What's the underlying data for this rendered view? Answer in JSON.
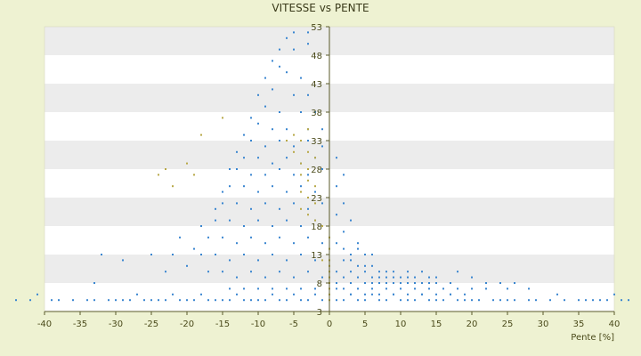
{
  "chart_data": {
    "type": "scatter",
    "title": "VITESSE vs PENTE",
    "xlabel": "Pente [%]",
    "ylabel": "",
    "xlim": [
      -40,
      40
    ],
    "ylim": [
      3,
      53
    ],
    "x_ticks": [
      -40,
      -35,
      -30,
      -25,
      -20,
      -15,
      -10,
      -5,
      0,
      5,
      10,
      15,
      20,
      25,
      30,
      35,
      40
    ],
    "y_ticks": [
      3,
      8,
      13,
      18,
      23,
      28,
      33,
      38,
      43,
      48,
      53
    ],
    "grid": "horizontal alternating bands",
    "legend": "none",
    "colors": {
      "points": "#3a86d0",
      "points_secondary": "#b8a848",
      "band_light": "#ffffff",
      "band_dark": "#ececec",
      "axis": "#5a5a2a"
    },
    "series": [
      {
        "color": "#3a86d0",
        "points": [
          [
            -44,
            5
          ],
          [
            -42,
            5
          ],
          [
            -41,
            6
          ],
          [
            -39,
            5
          ],
          [
            -38,
            5
          ],
          [
            -36,
            5
          ],
          [
            -34,
            5
          ],
          [
            -33,
            5
          ],
          [
            -31,
            5
          ],
          [
            -30,
            5
          ],
          [
            -29,
            5
          ],
          [
            -28,
            5
          ],
          [
            -27,
            6
          ],
          [
            -26,
            5
          ],
          [
            -25,
            5
          ],
          [
            -24,
            5
          ],
          [
            -23,
            5
          ],
          [
            -22,
            6
          ],
          [
            -21,
            5
          ],
          [
            -20,
            5
          ],
          [
            -19,
            5
          ],
          [
            -18,
            6
          ],
          [
            -17,
            5
          ],
          [
            -16,
            5
          ],
          [
            -15,
            5
          ],
          [
            -14,
            5
          ],
          [
            -13,
            6
          ],
          [
            -12,
            5
          ],
          [
            -11,
            5
          ],
          [
            -10,
            5
          ],
          [
            -9,
            5
          ],
          [
            -8,
            6
          ],
          [
            -7,
            5
          ],
          [
            -6,
            5
          ],
          [
            -5,
            6
          ],
          [
            -4,
            5
          ],
          [
            -3,
            5
          ],
          [
            -2,
            6
          ],
          [
            -1,
            5
          ],
          [
            1,
            5
          ],
          [
            2,
            5
          ],
          [
            3,
            6
          ],
          [
            4,
            5
          ],
          [
            5,
            5
          ],
          [
            6,
            6
          ],
          [
            7,
            5
          ],
          [
            8,
            5
          ],
          [
            9,
            6
          ],
          [
            10,
            5
          ],
          [
            11,
            5
          ],
          [
            12,
            5
          ],
          [
            13,
            6
          ],
          [
            14,
            5
          ],
          [
            15,
            5
          ],
          [
            16,
            5
          ],
          [
            17,
            6
          ],
          [
            18,
            5
          ],
          [
            19,
            5
          ],
          [
            20,
            5
          ],
          [
            21,
            5
          ],
          [
            23,
            5
          ],
          [
            24,
            5
          ],
          [
            25,
            5
          ],
          [
            26,
            5
          ],
          [
            28,
            5
          ],
          [
            29,
            5
          ],
          [
            31,
            5
          ],
          [
            32,
            6
          ],
          [
            33,
            5
          ],
          [
            35,
            5
          ],
          [
            36,
            5
          ],
          [
            37,
            5
          ],
          [
            38,
            5
          ],
          [
            39,
            5
          ],
          [
            40,
            6
          ],
          [
            41,
            5
          ],
          [
            42,
            5
          ],
          [
            -3,
            52
          ],
          [
            -6,
            51
          ],
          [
            -5,
            49
          ],
          [
            -3,
            50
          ],
          [
            -7,
            46
          ],
          [
            -6,
            45
          ],
          [
            -4,
            44
          ],
          [
            -8,
            42
          ],
          [
            -5,
            41
          ],
          [
            -3,
            41
          ],
          [
            -9,
            39
          ],
          [
            -7,
            38
          ],
          [
            -4,
            38
          ],
          [
            -2,
            38
          ],
          [
            -10,
            36
          ],
          [
            -8,
            35
          ],
          [
            -6,
            35
          ],
          [
            -3,
            35
          ],
          [
            -1,
            35
          ],
          [
            -11,
            33
          ],
          [
            -9,
            32
          ],
          [
            -7,
            33
          ],
          [
            -5,
            32
          ],
          [
            -3,
            33
          ],
          [
            -1,
            32
          ],
          [
            -12,
            30
          ],
          [
            -10,
            30
          ],
          [
            -8,
            29
          ],
          [
            -6,
            30
          ],
          [
            -4,
            29
          ],
          [
            -2,
            30
          ],
          [
            -13,
            28
          ],
          [
            -11,
            27
          ],
          [
            -9,
            27
          ],
          [
            -7,
            28
          ],
          [
            -5,
            27
          ],
          [
            -3,
            27
          ],
          [
            -1,
            28
          ],
          [
            -14,
            25
          ],
          [
            -12,
            25
          ],
          [
            -10,
            24
          ],
          [
            -8,
            25
          ],
          [
            -6,
            24
          ],
          [
            -4,
            25
          ],
          [
            -2,
            24
          ],
          [
            -15,
            22
          ],
          [
            -13,
            22
          ],
          [
            -11,
            21
          ],
          [
            -9,
            22
          ],
          [
            -7,
            21
          ],
          [
            -5,
            22
          ],
          [
            -3,
            21
          ],
          [
            -1,
            22
          ],
          [
            -16,
            19
          ],
          [
            -14,
            19
          ],
          [
            -12,
            18
          ],
          [
            -10,
            19
          ],
          [
            -8,
            18
          ],
          [
            -6,
            19
          ],
          [
            -4,
            18
          ],
          [
            -2,
            19
          ],
          [
            -17,
            16
          ],
          [
            -15,
            16
          ],
          [
            -13,
            15
          ],
          [
            -11,
            16
          ],
          [
            -9,
            15
          ],
          [
            -7,
            16
          ],
          [
            -5,
            15
          ],
          [
            -3,
            16
          ],
          [
            -1,
            15
          ],
          [
            -18,
            13
          ],
          [
            -16,
            13
          ],
          [
            -14,
            12
          ],
          [
            -12,
            13
          ],
          [
            -10,
            12
          ],
          [
            -8,
            13
          ],
          [
            -6,
            12
          ],
          [
            -4,
            13
          ],
          [
            -2,
            12
          ],
          [
            -17,
            10
          ],
          [
            -15,
            10
          ],
          [
            -13,
            9
          ],
          [
            -11,
            10
          ],
          [
            -9,
            9
          ],
          [
            -7,
            10
          ],
          [
            -5,
            9
          ],
          [
            -3,
            10
          ],
          [
            -1,
            9
          ],
          [
            -14,
            7
          ],
          [
            -12,
            7
          ],
          [
            -10,
            7
          ],
          [
            -8,
            7
          ],
          [
            -6,
            7
          ],
          [
            -4,
            7
          ],
          [
            -2,
            7
          ],
          [
            1,
            25
          ],
          [
            2,
            22
          ],
          [
            1,
            20
          ],
          [
            3,
            19
          ],
          [
            2,
            17
          ],
          [
            4,
            15
          ],
          [
            1,
            15
          ],
          [
            3,
            13
          ],
          [
            5,
            13
          ],
          [
            2,
            12
          ],
          [
            4,
            11
          ],
          [
            6,
            11
          ],
          [
            8,
            10
          ],
          [
            1,
            10
          ],
          [
            3,
            10
          ],
          [
            5,
            10
          ],
          [
            7,
            9
          ],
          [
            9,
            9
          ],
          [
            11,
            9
          ],
          [
            2,
            9
          ],
          [
            4,
            9
          ],
          [
            6,
            9
          ],
          [
            8,
            8
          ],
          [
            10,
            8
          ],
          [
            12,
            8
          ],
          [
            14,
            8
          ],
          [
            1,
            8
          ],
          [
            3,
            8
          ],
          [
            5,
            8
          ],
          [
            7,
            8
          ],
          [
            9,
            8
          ],
          [
            11,
            8
          ],
          [
            13,
            8
          ],
          [
            15,
            8
          ],
          [
            17,
            8
          ],
          [
            2,
            7
          ],
          [
            4,
            7
          ],
          [
            6,
            7
          ],
          [
            8,
            7
          ],
          [
            10,
            7
          ],
          [
            12,
            7
          ],
          [
            14,
            7
          ],
          [
            16,
            7
          ],
          [
            18,
            7
          ],
          [
            20,
            7
          ],
          [
            22,
            7
          ],
          [
            25,
            7
          ],
          [
            28,
            7
          ],
          [
            3,
            6
          ],
          [
            5,
            6
          ],
          [
            7,
            6
          ],
          [
            9,
            6
          ],
          [
            11,
            6
          ],
          [
            13,
            6
          ],
          [
            15,
            6
          ],
          [
            17,
            6
          ],
          [
            19,
            6
          ],
          [
            1,
            7
          ],
          [
            6,
            8
          ],
          [
            8,
            9
          ],
          [
            10,
            9
          ],
          [
            12,
            9
          ],
          [
            14,
            9
          ],
          [
            7,
            10
          ],
          [
            9,
            10
          ],
          [
            11,
            10
          ],
          [
            5,
            11
          ],
          [
            3,
            12
          ],
          [
            13,
            10
          ],
          [
            15,
            9
          ],
          [
            18,
            10
          ],
          [
            20,
            9
          ],
          [
            22,
            8
          ],
          [
            24,
            8
          ],
          [
            26,
            8
          ],
          [
            4,
            14
          ],
          [
            6,
            13
          ],
          [
            2,
            14
          ],
          [
            1,
            30
          ],
          [
            2,
            27
          ],
          [
            -32,
            13
          ],
          [
            -25,
            13
          ],
          [
            -29,
            12
          ],
          [
            -33,
            8
          ],
          [
            -20,
            11
          ],
          [
            -23,
            10
          ],
          [
            -22,
            13
          ],
          [
            -19,
            14
          ],
          [
            -21,
            16
          ],
          [
            -18,
            18
          ],
          [
            -16,
            21
          ],
          [
            -15,
            24
          ],
          [
            -14,
            28
          ],
          [
            -13,
            31
          ],
          [
            -12,
            34
          ],
          [
            -11,
            37
          ],
          [
            -10,
            41
          ],
          [
            -9,
            44
          ],
          [
            -8,
            47
          ],
          [
            -7,
            49
          ],
          [
            -5,
            52
          ]
        ]
      },
      {
        "color": "#b8a848",
        "points": [
          [
            -15,
            37
          ],
          [
            -18,
            34
          ],
          [
            -23,
            28
          ],
          [
            -20,
            29
          ],
          [
            -24,
            27
          ],
          [
            -19,
            27
          ],
          [
            -22,
            25
          ],
          [
            -4,
            33
          ],
          [
            -3,
            31
          ],
          [
            -2,
            30
          ],
          [
            -4,
            29
          ],
          [
            -3,
            28
          ],
          [
            -4,
            27
          ],
          [
            -3,
            26
          ],
          [
            -2,
            25
          ],
          [
            -4,
            24
          ],
          [
            -3,
            23
          ],
          [
            -2,
            22
          ],
          [
            -4,
            21
          ],
          [
            -3,
            20
          ],
          [
            -2,
            19
          ],
          [
            -1,
            18
          ],
          [
            0,
            16
          ],
          [
            0,
            14
          ],
          [
            0,
            12
          ],
          [
            0,
            11
          ],
          [
            0,
            10
          ],
          [
            0,
            9
          ],
          [
            0,
            8
          ],
          [
            0,
            7
          ],
          [
            0,
            6
          ],
          [
            0,
            5
          ],
          [
            -1,
            12
          ],
          [
            -3,
            35
          ],
          [
            -5,
            34
          ],
          [
            -6,
            33
          ],
          [
            -5,
            31
          ]
        ]
      }
    ]
  }
}
